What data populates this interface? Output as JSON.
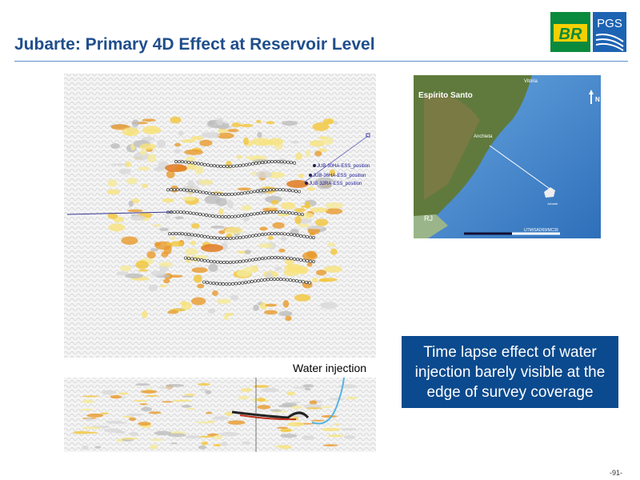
{
  "header": {
    "title": "Jubarte: Primary 4D Effect at Reservoir Level",
    "logo_left": "BR",
    "logo_right": "PGS"
  },
  "seismic": {
    "wells": [
      "JUB-30HA-ESS_position",
      "JUB-36HA-ESS_position",
      "JUB-32RA-ESS_position"
    ],
    "annotation": "Water injection"
  },
  "map": {
    "labels": [
      "Vitória",
      "Espírito Santo",
      "Anchieta",
      "RJ",
      "N",
      "Jubarte",
      "UTM/SAD69/MC39"
    ]
  },
  "callout": "Time lapse effect of water injection barely visible at the edge of survey coverage",
  "footer": {
    "page": "-91-"
  }
}
